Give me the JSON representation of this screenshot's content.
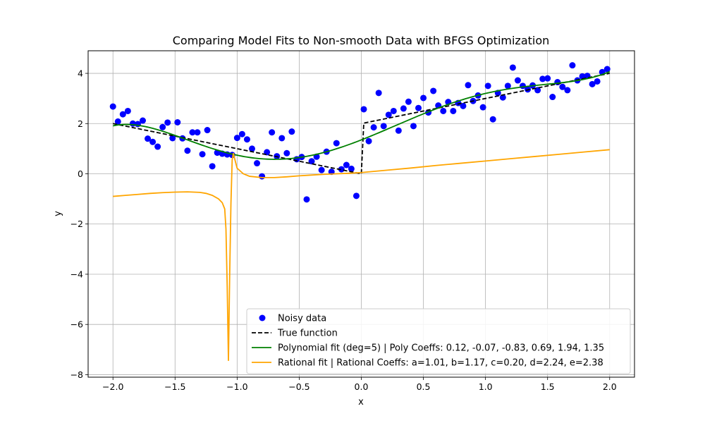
{
  "chart_data": {
    "type": "scatter",
    "title": "Comparing Model Fits to Non-smooth Data with BFGS Optimization",
    "xlabel": "x",
    "ylabel": "y",
    "xlim": [
      -2.2,
      2.2
    ],
    "ylim": [
      -8.1,
      4.9
    ],
    "x_ticks": [
      -2.0,
      -1.5,
      -1.0,
      -0.5,
      0.0,
      0.5,
      1.0,
      1.5,
      2.0
    ],
    "x_tick_labels": [
      "−2.0",
      "−1.5",
      "−1.0",
      "−0.5",
      "0.0",
      "0.5",
      "1.0",
      "1.5",
      "2.0"
    ],
    "y_ticks": [
      -8,
      -6,
      -4,
      -2,
      0,
      2,
      4
    ],
    "y_tick_labels": [
      "−8",
      "−6",
      "−4",
      "−2",
      "0",
      "2",
      "4"
    ],
    "grid": true,
    "legend_position": "lower-right",
    "series": [
      {
        "name": "Noisy data",
        "kind": "scatter",
        "color": "#0000ff",
        "points": [
          [
            -2.0,
            2.68
          ],
          [
            -1.96,
            2.08
          ],
          [
            -1.92,
            2.37
          ],
          [
            -1.88,
            2.5
          ],
          [
            -1.84,
            2.0
          ],
          [
            -1.8,
            1.98
          ],
          [
            -1.76,
            2.12
          ],
          [
            -1.72,
            1.4
          ],
          [
            -1.68,
            1.27
          ],
          [
            -1.64,
            1.08
          ],
          [
            -1.6,
            1.86
          ],
          [
            -1.56,
            2.04
          ],
          [
            -1.52,
            1.42
          ],
          [
            -1.48,
            2.05
          ],
          [
            -1.44,
            1.41
          ],
          [
            -1.4,
            0.92
          ],
          [
            -1.36,
            1.65
          ],
          [
            -1.32,
            1.65
          ],
          [
            -1.28,
            0.78
          ],
          [
            -1.24,
            1.74
          ],
          [
            -1.2,
            0.3
          ],
          [
            -1.16,
            0.84
          ],
          [
            -1.12,
            0.8
          ],
          [
            -1.08,
            0.77
          ],
          [
            -1.04,
            0.75
          ],
          [
            -1.0,
            1.43
          ],
          [
            -0.96,
            1.58
          ],
          [
            -0.92,
            1.37
          ],
          [
            -0.88,
            1.0
          ],
          [
            -0.84,
            0.42
          ],
          [
            -0.8,
            -0.1
          ],
          [
            -0.76,
            0.86
          ],
          [
            -0.72,
            1.65
          ],
          [
            -0.68,
            0.7
          ],
          [
            -0.64,
            1.42
          ],
          [
            -0.6,
            0.82
          ],
          [
            -0.56,
            1.68
          ],
          [
            -0.52,
            0.58
          ],
          [
            -0.48,
            0.67
          ],
          [
            -0.44,
            -1.02
          ],
          [
            -0.4,
            0.5
          ],
          [
            -0.36,
            0.68
          ],
          [
            -0.32,
            0.15
          ],
          [
            -0.28,
            0.88
          ],
          [
            -0.24,
            0.08
          ],
          [
            -0.2,
            1.22
          ],
          [
            -0.16,
            0.18
          ],
          [
            -0.12,
            0.35
          ],
          [
            -0.08,
            0.2
          ],
          [
            -0.04,
            -0.88
          ],
          [
            0.02,
            2.57
          ],
          [
            0.06,
            1.3
          ],
          [
            0.1,
            1.85
          ],
          [
            0.14,
            3.22
          ],
          [
            0.18,
            1.9
          ],
          [
            0.22,
            2.35
          ],
          [
            0.26,
            2.5
          ],
          [
            0.3,
            1.72
          ],
          [
            0.34,
            2.6
          ],
          [
            0.38,
            2.87
          ],
          [
            0.42,
            1.9
          ],
          [
            0.46,
            2.62
          ],
          [
            0.5,
            3.02
          ],
          [
            0.54,
            2.44
          ],
          [
            0.58,
            3.3
          ],
          [
            0.62,
            2.72
          ],
          [
            0.66,
            2.5
          ],
          [
            0.7,
            2.86
          ],
          [
            0.74,
            2.5
          ],
          [
            0.78,
            2.82
          ],
          [
            0.82,
            2.7
          ],
          [
            0.86,
            3.53
          ],
          [
            0.9,
            2.9
          ],
          [
            0.94,
            3.12
          ],
          [
            0.98,
            2.65
          ],
          [
            1.02,
            3.5
          ],
          [
            1.06,
            2.17
          ],
          [
            1.1,
            3.22
          ],
          [
            1.14,
            3.04
          ],
          [
            1.18,
            3.5
          ],
          [
            1.22,
            4.23
          ],
          [
            1.26,
            3.72
          ],
          [
            1.3,
            3.5
          ],
          [
            1.34,
            3.36
          ],
          [
            1.38,
            3.52
          ],
          [
            1.42,
            3.33
          ],
          [
            1.46,
            3.78
          ],
          [
            1.5,
            3.8
          ],
          [
            1.54,
            3.06
          ],
          [
            1.58,
            3.65
          ],
          [
            1.62,
            3.46
          ],
          [
            1.66,
            3.33
          ],
          [
            1.7,
            4.32
          ],
          [
            1.74,
            3.72
          ],
          [
            1.78,
            3.88
          ],
          [
            1.82,
            3.9
          ],
          [
            1.86,
            3.57
          ],
          [
            1.9,
            3.68
          ],
          [
            1.94,
            4.05
          ],
          [
            1.98,
            4.17
          ]
        ]
      },
      {
        "name": "True function",
        "kind": "line",
        "style": "dashed",
        "color": "#000000",
        "points": [
          [
            -2.0,
            2.0
          ],
          [
            0.0,
            0.0
          ],
          [
            0.02,
            2.02
          ],
          [
            2.0,
            4.0
          ]
        ]
      },
      {
        "name": "Polynomial fit (deg=5) | Poly Coeffs: 0.12, -0.07, -0.83, 0.69, 1.94, 1.35",
        "kind": "line",
        "style": "solid",
        "color": "#008000",
        "coefficients": [
          0.12,
          -0.07,
          -0.83,
          0.69,
          1.94,
          1.35
        ]
      },
      {
        "name": "Rational fit | Rational Coeffs: a=1.01, b=1.17, c=0.20, d=2.24, e=2.38",
        "kind": "line",
        "style": "solid",
        "color": "#ffa500",
        "points": [
          [
            -2.0,
            -0.9
          ],
          [
            -1.9,
            -0.86
          ],
          [
            -1.8,
            -0.82
          ],
          [
            -1.7,
            -0.78
          ],
          [
            -1.6,
            -0.75
          ],
          [
            -1.5,
            -0.73
          ],
          [
            -1.4,
            -0.72
          ],
          [
            -1.3,
            -0.74
          ],
          [
            -1.25,
            -0.78
          ],
          [
            -1.2,
            -0.86
          ],
          [
            -1.15,
            -1.0
          ],
          [
            -1.12,
            -1.15
          ],
          [
            -1.1,
            -1.4
          ],
          [
            -1.09,
            -2.2
          ],
          [
            -1.08,
            -4.5
          ],
          [
            -1.07,
            -7.45
          ],
          [
            -1.06,
            -4.0
          ],
          [
            -1.05,
            -1.2
          ],
          [
            -1.04,
            0.55
          ],
          [
            -1.03,
            0.82
          ],
          [
            -1.02,
            0.6
          ],
          [
            -1.0,
            0.22
          ],
          [
            -0.95,
            0.0
          ],
          [
            -0.9,
            -0.1
          ],
          [
            -0.8,
            -0.15
          ],
          [
            -0.7,
            -0.15
          ],
          [
            -0.6,
            -0.12
          ],
          [
            -0.5,
            -0.08
          ],
          [
            -0.4,
            -0.05
          ],
          [
            -0.3,
            -0.02
          ],
          [
            -0.2,
            0.0
          ],
          [
            -0.1,
            0.02
          ],
          [
            0.0,
            0.05
          ],
          [
            0.2,
            0.14
          ],
          [
            0.4,
            0.23
          ],
          [
            0.6,
            0.33
          ],
          [
            0.8,
            0.42
          ],
          [
            1.0,
            0.51
          ],
          [
            1.2,
            0.6
          ],
          [
            1.4,
            0.69
          ],
          [
            1.6,
            0.78
          ],
          [
            1.8,
            0.87
          ],
          [
            2.0,
            0.96
          ]
        ]
      }
    ]
  }
}
